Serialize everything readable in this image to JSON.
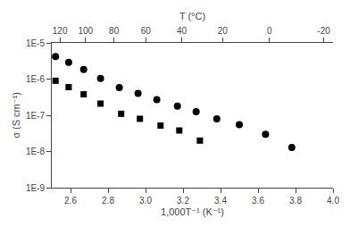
{
  "chart_data": {
    "type": "scatter",
    "log": "y",
    "grid": false,
    "xlabel": "1,000T⁻¹ (K⁻¹)",
    "ylabel": "σ (S cm⁻¹)",
    "x2label": "T (°C)",
    "xlim": [
      2.5,
      4.0
    ],
    "ylim": [
      1e-09,
      1e-05
    ],
    "x2lim": [
      2.5,
      4.0
    ],
    "xticks": [
      2.6,
      2.8,
      {
        "value": 3.0,
        "label": "3.0"
      },
      3.2,
      3.4,
      3.6,
      3.8,
      {
        "value": 4.0,
        "label": "4.0"
      }
    ],
    "yticks": [
      {
        "value": 1e-09,
        "label": "1E-9"
      },
      {
        "value": 1e-08,
        "label": "1E-8"
      },
      {
        "value": 1e-07,
        "label": "1E-7"
      },
      {
        "value": 1e-06,
        "label": "1E-6"
      },
      {
        "value": 1e-05,
        "label": "1E-5"
      }
    ],
    "x2ticks": [
      {
        "value": 2.543558,
        "label": "120"
      },
      {
        "value": 2.679887,
        "label": "100"
      },
      {
        "value": 2.831658,
        "label": "80"
      },
      {
        "value": 3.001651,
        "label": "60"
      },
      {
        "value": 3.193358,
        "label": "40"
      },
      {
        "value": 3.411223,
        "label": "20"
      },
      {
        "value": 3.660992,
        "label": "0"
      },
      {
        "value": 3.950227,
        "label": "-20"
      }
    ],
    "series": [
      {
        "marker": "circle",
        "color": "black",
        "x": [
          2.52,
          2.59,
          2.67,
          2.76,
          2.86,
          2.96,
          3.06,
          3.17,
          3.27,
          3.38,
          3.5,
          3.64,
          3.78
        ],
        "values": [
          4.2e-06,
          2.9e-06,
          1.85e-06,
          1.05e-06,
          5.8e-07,
          4e-07,
          2.7e-07,
          1.8e-07,
          1.25e-07,
          8e-08,
          5.5e-08,
          3e-08,
          1.3e-08
        ]
      },
      {
        "marker": "square",
        "color": "black",
        "x": [
          2.52,
          2.59,
          2.67,
          2.76,
          2.87,
          2.97,
          3.08,
          3.18,
          3.29
        ],
        "values": [
          9e-07,
          6e-07,
          3.8e-07,
          2.1e-07,
          1.1e-07,
          8e-08,
          5.2e-08,
          3.8e-08,
          2e-08
        ]
      }
    ]
  }
}
